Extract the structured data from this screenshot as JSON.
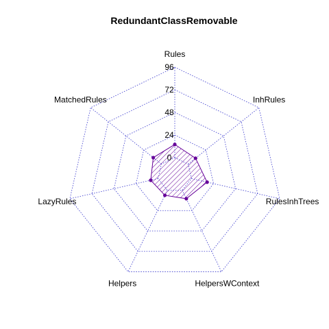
{
  "chart_data": {
    "type": "radar",
    "title": "RedundantClassRemovable",
    "axes": [
      "Rules",
      "InhRules",
      "RulesInhTrees",
      "HelpersWContext",
      "Helpers",
      "LazyRules",
      "MatchedRules"
    ],
    "ticks": [
      "0",
      "24",
      "48",
      "72",
      "96"
    ],
    "range": [
      0,
      96
    ],
    "series": [
      {
        "values": [
          14,
          10,
          17,
          10,
          6,
          8,
          11
        ],
        "color": "#660099"
      }
    ],
    "grid_color": "#3333cc",
    "grid_style": "dotted"
  }
}
